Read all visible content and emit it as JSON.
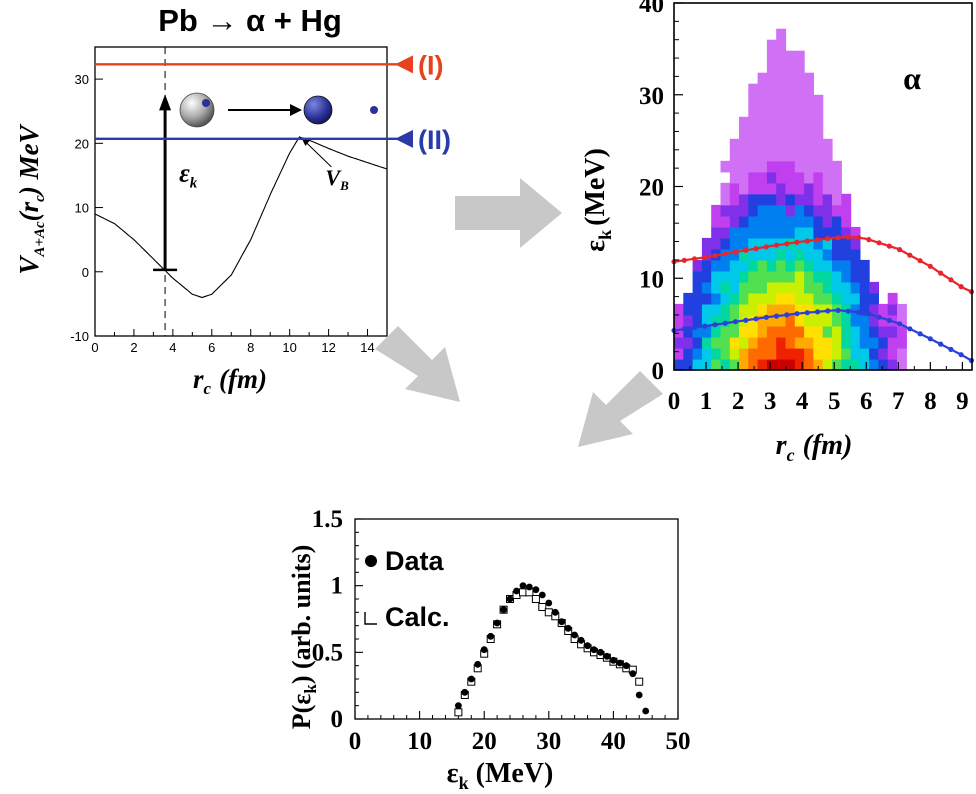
{
  "figure": {
    "title": "Pb → α + Hg"
  },
  "chart_data": [
    {
      "type": "line",
      "panel": "potential",
      "xlabel": "r",
      "xlabel_sub": "c",
      "xlabel_unit": "(fm)",
      "ylabel": "V",
      "ylabel_sub": "A+Ac",
      "ylabel_arg": "(r",
      "ylabel_arg_sub": "c",
      "ylabel_unit": ") MeV",
      "xlim": [
        0,
        15
      ],
      "ylim": [
        -10,
        35
      ],
      "xticks": [
        "0",
        "2",
        "4",
        "6",
        "8",
        "10",
        "12",
        "14"
      ],
      "yticks": [
        "-10",
        "0",
        "10",
        "20",
        "30"
      ],
      "potential_curve": {
        "x": [
          0,
          1,
          2,
          3,
          4,
          5,
          5.5,
          6,
          7,
          8,
          9,
          10,
          10.5,
          11,
          12,
          13,
          14,
          15
        ],
        "y": [
          9,
          7.5,
          5,
          2,
          -1,
          -3.5,
          -4,
          -3.5,
          -0.5,
          5,
          12,
          18.5,
          21,
          20.5,
          19.2,
          18,
          17,
          16
        ]
      },
      "levels": [
        {
          "label": "(I)",
          "y": 32.3,
          "color": "#e8421c"
        },
        {
          "label": "(II)",
          "y": 20.7,
          "color": "#2a3aa8"
        }
      ],
      "dashed_line_x": 3.6,
      "arrow": {
        "x": 3.6,
        "y_from": 0.3,
        "y_to": 27,
        "label": "ε",
        "label_sub": "k"
      },
      "barrier_label": "V",
      "barrier_label_sub": "B",
      "barrier_point": {
        "x": 10.5,
        "y": 21
      }
    },
    {
      "type": "heatmap",
      "panel": "distribution",
      "annotation": "α",
      "xlabel": "r",
      "xlabel_sub": "c",
      "xlabel_unit": "(fm)",
      "ylabel": "ε",
      "ylabel_sub": "k",
      "ylabel_unit": "(MeV)",
      "xlim": [
        0,
        9.3
      ],
      "ylim": [
        0,
        40
      ],
      "xticks": [
        "0",
        "1",
        "2",
        "3",
        "4",
        "5",
        "6",
        "7",
        "8",
        "9"
      ],
      "yticks": [
        "0",
        "10",
        "20",
        "30",
        "40"
      ],
      "cell_dx": 0.29,
      "cell_dy": 1.2,
      "distribution": {
        "center_x": 3.4,
        "sigma_x": 1.8,
        "x_max": 7.1,
        "upper_peak_y": 37,
        "upper_width": 2.7
      },
      "colormap": [
        "#cc0000",
        "#ee2200",
        "#ff6a00",
        "#ffaa00",
        "#ffe000",
        "#c8f000",
        "#50e050",
        "#00d8a0",
        "#00c8e8",
        "#0080f0",
        "#2040e0",
        "#8030e8",
        "#c040f0",
        "#d070f5"
      ],
      "curves": [
        {
          "name": "red",
          "color": "#e8242c",
          "x": [
            0,
            1,
            2,
            3,
            4,
            5,
            5.6,
            6,
            7,
            8,
            9,
            9.3
          ],
          "y": [
            11.8,
            12.3,
            12.9,
            13.5,
            14.0,
            14.4,
            14.5,
            14.3,
            13.2,
            11.3,
            9.0,
            8.5
          ]
        },
        {
          "name": "blue",
          "color": "#2a40d8",
          "x": [
            0,
            1,
            2,
            3,
            4,
            5,
            5.2,
            6,
            7,
            8,
            9,
            9.3
          ],
          "y": [
            4.3,
            4.8,
            5.3,
            5.8,
            6.2,
            6.5,
            6.5,
            6.2,
            5.1,
            3.4,
            1.6,
            1.0
          ]
        }
      ]
    },
    {
      "type": "scatter",
      "panel": "energy-spectrum",
      "xlabel": "ε",
      "xlabel_sub": "k",
      "xlabel_unit": " (MeV)",
      "ylabel": "P(ε",
      "ylabel_sub": "k",
      "ylabel_unit": ") (arb. units)",
      "xlim": [
        0,
        50
      ],
      "ylim": [
        0,
        1.5
      ],
      "xticks": [
        "0",
        "10",
        "20",
        "30",
        "40",
        "50"
      ],
      "yticks": [
        "0",
        "0.5",
        "1",
        "1.5"
      ],
      "series": [
        {
          "name": "Data",
          "marker": "filled-circle",
          "x": [
            16,
            17,
            18,
            19,
            20,
            21,
            22,
            23,
            24,
            25,
            26,
            27,
            28,
            29,
            30,
            31,
            32,
            33,
            34,
            35,
            36,
            37,
            38,
            39,
            40,
            41,
            42,
            43,
            44,
            45
          ],
          "y": [
            0.1,
            0.2,
            0.3,
            0.41,
            0.52,
            0.62,
            0.72,
            0.82,
            0.9,
            0.96,
            1.0,
            0.99,
            0.97,
            0.93,
            0.87,
            0.8,
            0.73,
            0.68,
            0.63,
            0.59,
            0.55,
            0.52,
            0.5,
            0.47,
            0.44,
            0.42,
            0.4,
            0.34,
            0.18,
            0.06
          ]
        },
        {
          "name": "Calc.",
          "marker": "open-square",
          "x": [
            16,
            17,
            18,
            19,
            20,
            21,
            22,
            23,
            24,
            25,
            26,
            27,
            28,
            29,
            30,
            31,
            32,
            33,
            34,
            35,
            36,
            37,
            38,
            39,
            40,
            41,
            42,
            43,
            44
          ],
          "y": [
            0.05,
            0.18,
            0.28,
            0.38,
            0.49,
            0.6,
            0.71,
            0.82,
            0.9,
            0.93,
            0.95,
            0.95,
            0.9,
            0.84,
            0.8,
            0.77,
            0.72,
            0.66,
            0.6,
            0.56,
            0.53,
            0.5,
            0.48,
            0.46,
            0.43,
            0.41,
            0.38,
            0.37,
            0.28
          ]
        }
      ]
    }
  ]
}
